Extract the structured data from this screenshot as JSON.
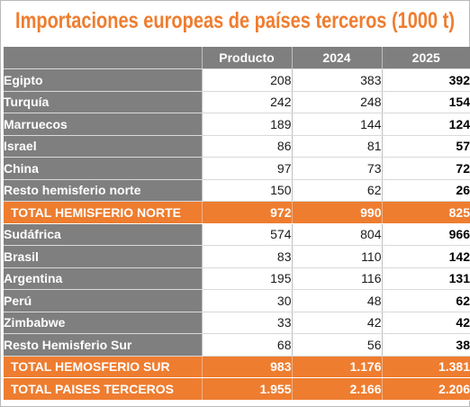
{
  "title": "Importaciones europeas de países terceros (1000 t)",
  "columns": [
    "Producto",
    "2024",
    "2025"
  ],
  "rows": [
    {
      "name": "Egipto",
      "producto": "208",
      "y2024": "383",
      "y2025": "392"
    },
    {
      "name": "Turquía",
      "producto": "242",
      "y2024": "248",
      "y2025": "154"
    },
    {
      "name": "Marruecos",
      "producto": "189",
      "y2024": "144",
      "y2025": "124"
    },
    {
      "name": "Israel",
      "producto": "86",
      "y2024": "81",
      "y2025": "57"
    },
    {
      "name": "China",
      "producto": "97",
      "y2024": "73",
      "y2025": "72"
    },
    {
      "name": "Resto hemisferio norte",
      "producto": "150",
      "y2024": "62",
      "y2025": "26"
    },
    {
      "name": "TOTAL HEMISFERIO NORTE",
      "producto": "972",
      "y2024": "990",
      "y2025": "825",
      "total": true
    },
    {
      "name": "Sudáfrica",
      "producto": "574",
      "y2024": "804",
      "y2025": "966"
    },
    {
      "name": "Brasil",
      "producto": "83",
      "y2024": "110",
      "y2025": "142"
    },
    {
      "name": "Argentina",
      "producto": "195",
      "y2024": "116",
      "y2025": "131"
    },
    {
      "name": "Perú",
      "producto": "30",
      "y2024": "48",
      "y2025": "62"
    },
    {
      "name": "Zimbabwe",
      "producto": "33",
      "y2024": "42",
      "y2025": "42"
    },
    {
      "name": "Resto Hemisferio Sur",
      "producto": "68",
      "y2024": "56",
      "y2025": "38"
    },
    {
      "name": "TOTAL HEMOSFERIO SUR",
      "producto": "983",
      "y2024": "1.176",
      "y2025": "1.381",
      "total": true
    },
    {
      "name": "TOTAL PAISES TERCEROS",
      "producto": "1.955",
      "y2024": "2.166",
      "y2025": "2.206",
      "total": true
    }
  ],
  "colors": {
    "accent": "#ee7d30",
    "header_gray": "#7f7f7f"
  }
}
